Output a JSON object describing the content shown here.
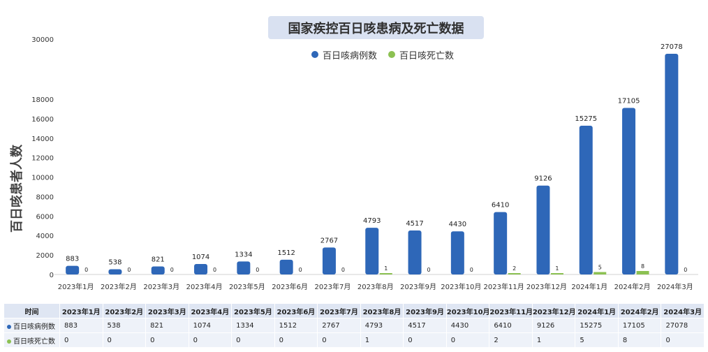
{
  "chart_data": {
    "type": "bar",
    "title": "国家疾控百日咳患病及死亡数据",
    "ylabel": "百日咳患者人数",
    "categories": [
      "2023年1月",
      "2023年2月",
      "2023年3月",
      "2023年4月",
      "2023年5月",
      "2023年6月",
      "2023年7月",
      "2023年8月",
      "2023年9月",
      "2023年10月",
      "2023年11月",
      "2023年12月",
      "2024年1月",
      "2024年2月",
      "2024年3月"
    ],
    "series": [
      {
        "name": "百日咳病例数",
        "color": "#2e67b8",
        "values": [
          883,
          538,
          821,
          1074,
          1334,
          1512,
          2767,
          4793,
          4517,
          4430,
          6410,
          9126,
          15275,
          17105,
          27078
        ]
      },
      {
        "name": "百日咳死亡数",
        "color": "#8cc152",
        "values": [
          0,
          0,
          0,
          0,
          0,
          0,
          0,
          1,
          0,
          0,
          2,
          1,
          5,
          8,
          0
        ]
      }
    ],
    "yticks": [
      0,
      2000,
      4000,
      6000,
      8000,
      10000,
      12000,
      14000,
      16000,
      18000,
      30000
    ],
    "grid": false,
    "legend": "top-center"
  },
  "table": {
    "corner": "时间"
  }
}
